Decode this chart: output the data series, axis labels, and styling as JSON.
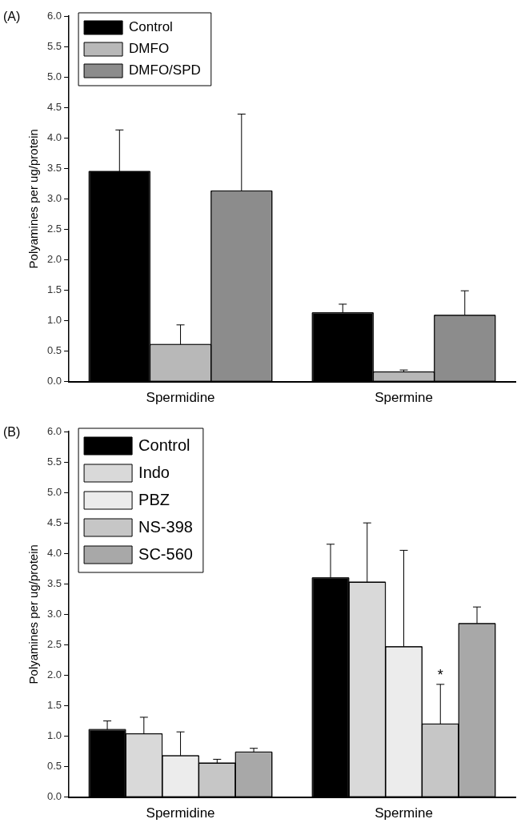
{
  "chart_data": [
    {
      "type": "bar",
      "title": "(A)",
      "ylabel": "Polyamines per ug/protein",
      "categories": [
        "Spermidine",
        "Spermine"
      ],
      "series": [
        {
          "name": "Control",
          "color": "#000000",
          "values": [
            3.45,
            1.13
          ],
          "errors": [
            [
              3.45,
              4.13
            ],
            [
              1.13,
              1.27
            ]
          ]
        },
        {
          "name": "DMFO",
          "color": "#b8b8b8",
          "values": [
            0.61,
            0.16
          ],
          "errors": [
            [
              0.61,
              0.93
            ],
            [
              0.16,
              0.19
            ]
          ]
        },
        {
          "name": "DMFO/SPD",
          "color": "#8c8c8c",
          "values": [
            3.13,
            1.09
          ],
          "errors": [
            [
              3.13,
              4.39
            ],
            [
              1.09,
              1.49
            ]
          ]
        }
      ],
      "ylim": [
        0,
        6
      ],
      "yticks": [
        {
          "value": 0,
          "label": "0.0"
        },
        {
          "value": 0.5,
          "label": "0.5"
        },
        {
          "value": 1,
          "label": "1.0"
        },
        {
          "value": 1.5,
          "label": "1.5"
        },
        {
          "value": 2,
          "label": "2.0"
        },
        {
          "value": 2.5,
          "label": "2.5"
        },
        {
          "value": 3,
          "label": "3.0"
        },
        {
          "value": 3.5,
          "label": "3.5"
        },
        {
          "value": 4,
          "label": "4.0"
        },
        {
          "value": 4.5,
          "label": "4.5"
        },
        {
          "value": 5,
          "label": "5.0"
        },
        {
          "value": 5.5,
          "label": "5.5"
        },
        {
          "value": 6,
          "label": "6.0"
        }
      ],
      "grid": false,
      "legend": "top left"
    },
    {
      "type": "bar",
      "title": "(B)",
      "ylabel": "Polyamines per ug/protein",
      "categories": [
        "Spermidine",
        "Spermine"
      ],
      "series": [
        {
          "name": "Control",
          "color": "#000000",
          "values": [
            1.11,
            3.6
          ],
          "errors": [
            [
              1.11,
              1.25
            ],
            [
              3.6,
              4.15
            ]
          ]
        },
        {
          "name": "Indo",
          "color": "#d9d9d9",
          "values": [
            1.04,
            3.53
          ],
          "errors": [
            [
              1.04,
              1.31
            ],
            [
              3.53,
              4.5
            ]
          ]
        },
        {
          "name": "PBZ",
          "color": "#ececec",
          "values": [
            0.68,
            2.47
          ],
          "errors": [
            [
              0.68,
              1.07
            ],
            [
              2.47,
              4.05
            ]
          ]
        },
        {
          "name": "NS-398",
          "color": "#c6c6c6",
          "values": [
            0.56,
            1.2
          ],
          "errors": [
            [
              0.56,
              0.62
            ],
            [
              1.2,
              1.85
            ]
          ]
        },
        {
          "name": "SC-560",
          "color": "#a8a8a8",
          "values": [
            0.74,
            2.85
          ],
          "errors": [
            [
              0.74,
              0.8
            ],
            [
              2.85,
              3.12
            ]
          ]
        }
      ],
      "annotations": [
        "*"
      ],
      "ylim": [
        0,
        6
      ],
      "yticks": [
        {
          "value": 0,
          "label": "0.0"
        },
        {
          "value": 0.5,
          "label": "0.5"
        },
        {
          "value": 1,
          "label": "1.0"
        },
        {
          "value": 1.5,
          "label": "1.5"
        },
        {
          "value": 2,
          "label": "2.0"
        },
        {
          "value": 2.5,
          "label": "2.5"
        },
        {
          "value": 3,
          "label": "3.0"
        },
        {
          "value": 3.5,
          "label": "3.5"
        },
        {
          "value": 4,
          "label": "4.0"
        },
        {
          "value": 4.5,
          "label": "4.5"
        },
        {
          "value": 5,
          "label": "5.0"
        },
        {
          "value": 5.5,
          "label": "5.5"
        },
        {
          "value": 6,
          "label": "6.0"
        }
      ],
      "grid": false,
      "legend": "top left"
    }
  ]
}
